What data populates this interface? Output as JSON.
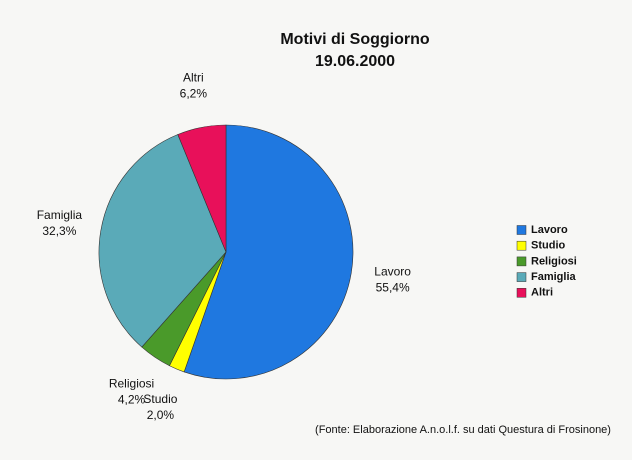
{
  "chart_data": {
    "type": "pie",
    "title": "Motivi di Soggiorno",
    "subtitle": "19.06.2000",
    "categories": [
      "Lavoro",
      "Studio",
      "Religiosi",
      "Famiglia",
      "Altri"
    ],
    "values": [
      55.4,
      2.0,
      4.2,
      32.3,
      6.2
    ],
    "value_labels": [
      "55,4%",
      "2,0%",
      "4,2%",
      "32,3%",
      "6,2%"
    ],
    "colors": [
      "#1f78e0",
      "#ffff00",
      "#4a9a2a",
      "#5aaab8",
      "#e8105a"
    ],
    "legend": "right",
    "source": "(Fonte: Elaborazione A.n.o.l.f. su dati Questura di Frosinone)"
  }
}
